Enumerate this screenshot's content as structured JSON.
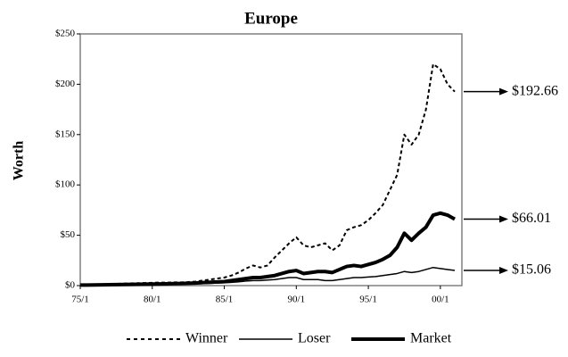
{
  "chart_data": {
    "type": "line",
    "title": "Europe",
    "y_label": "Worth",
    "categories": [
      "75/1",
      null,
      null,
      null,
      null,
      null,
      null,
      null,
      null,
      null,
      "80/1",
      null,
      null,
      null,
      null,
      null,
      null,
      null,
      null,
      null,
      "85/1",
      null,
      null,
      null,
      null,
      null,
      null,
      null,
      null,
      null,
      "90/1",
      null,
      null,
      null,
      null,
      null,
      null,
      null,
      null,
      null,
      "95/1",
      null,
      null,
      null,
      null,
      null,
      null,
      null,
      null,
      null,
      "00/1",
      null,
      null
    ],
    "ylim": [
      0,
      250
    ],
    "yticks": [
      {
        "value": 0,
        "label": "$0"
      },
      {
        "value": 50,
        "label": "$50"
      },
      {
        "value": 100,
        "label": "$100"
      },
      {
        "value": 150,
        "label": "$150"
      },
      {
        "value": 200,
        "label": "$200"
      },
      {
        "value": 250,
        "label": "$250"
      }
    ],
    "series": [
      {
        "name": "Winner",
        "color": "#000000",
        "style": "dashed",
        "width": 2,
        "end_label": "$192.66",
        "values": [
          1,
          1.1,
          1.2,
          1.3,
          1.5,
          1.7,
          2,
          2.2,
          2.4,
          2.6,
          2.8,
          3,
          3,
          3.2,
          3.2,
          3.5,
          4,
          5,
          6,
          7,
          8,
          10,
          13,
          17,
          20,
          18,
          20,
          28,
          35,
          42,
          48,
          40,
          38,
          40,
          42,
          35,
          40,
          55,
          58,
          60,
          65,
          72,
          80,
          95,
          110,
          150,
          140,
          150,
          175,
          220,
          215,
          200,
          192.66
        ]
      },
      {
        "name": "Loser",
        "color": "#000000",
        "style": "solid",
        "width": 1.5,
        "end_label": "$15.06",
        "values": [
          0.5,
          0.55,
          0.6,
          0.65,
          0.7,
          0.75,
          0.8,
          0.85,
          0.9,
          1,
          1.1,
          1.2,
          1.3,
          1.4,
          1.5,
          1.6,
          1.8,
          2,
          2.2,
          2.5,
          2.8,
          3.2,
          3.8,
          4.5,
          5,
          5,
          5.5,
          6,
          7,
          8,
          8,
          6,
          6,
          6,
          5,
          5,
          6,
          7,
          8,
          8,
          8.5,
          9,
          10,
          11,
          12,
          14,
          13,
          14,
          16,
          18,
          17,
          16,
          15.06
        ]
      },
      {
        "name": "Market",
        "color": "#000000",
        "style": "solid",
        "width": 4,
        "end_label": "$66.01",
        "values": [
          0.5,
          0.6,
          0.7,
          0.8,
          0.9,
          1,
          1.1,
          1.2,
          1.3,
          1.4,
          1.5,
          1.7,
          1.8,
          2,
          2.1,
          2.3,
          2.6,
          3,
          3.3,
          3.7,
          4,
          5,
          6,
          7,
          8,
          8,
          9,
          10,
          12,
          14,
          15,
          12,
          13,
          14,
          14,
          13,
          16,
          19,
          20,
          19,
          21,
          23,
          26,
          30,
          38,
          52,
          45,
          52,
          58,
          70,
          72,
          70,
          66.01
        ]
      }
    ]
  }
}
